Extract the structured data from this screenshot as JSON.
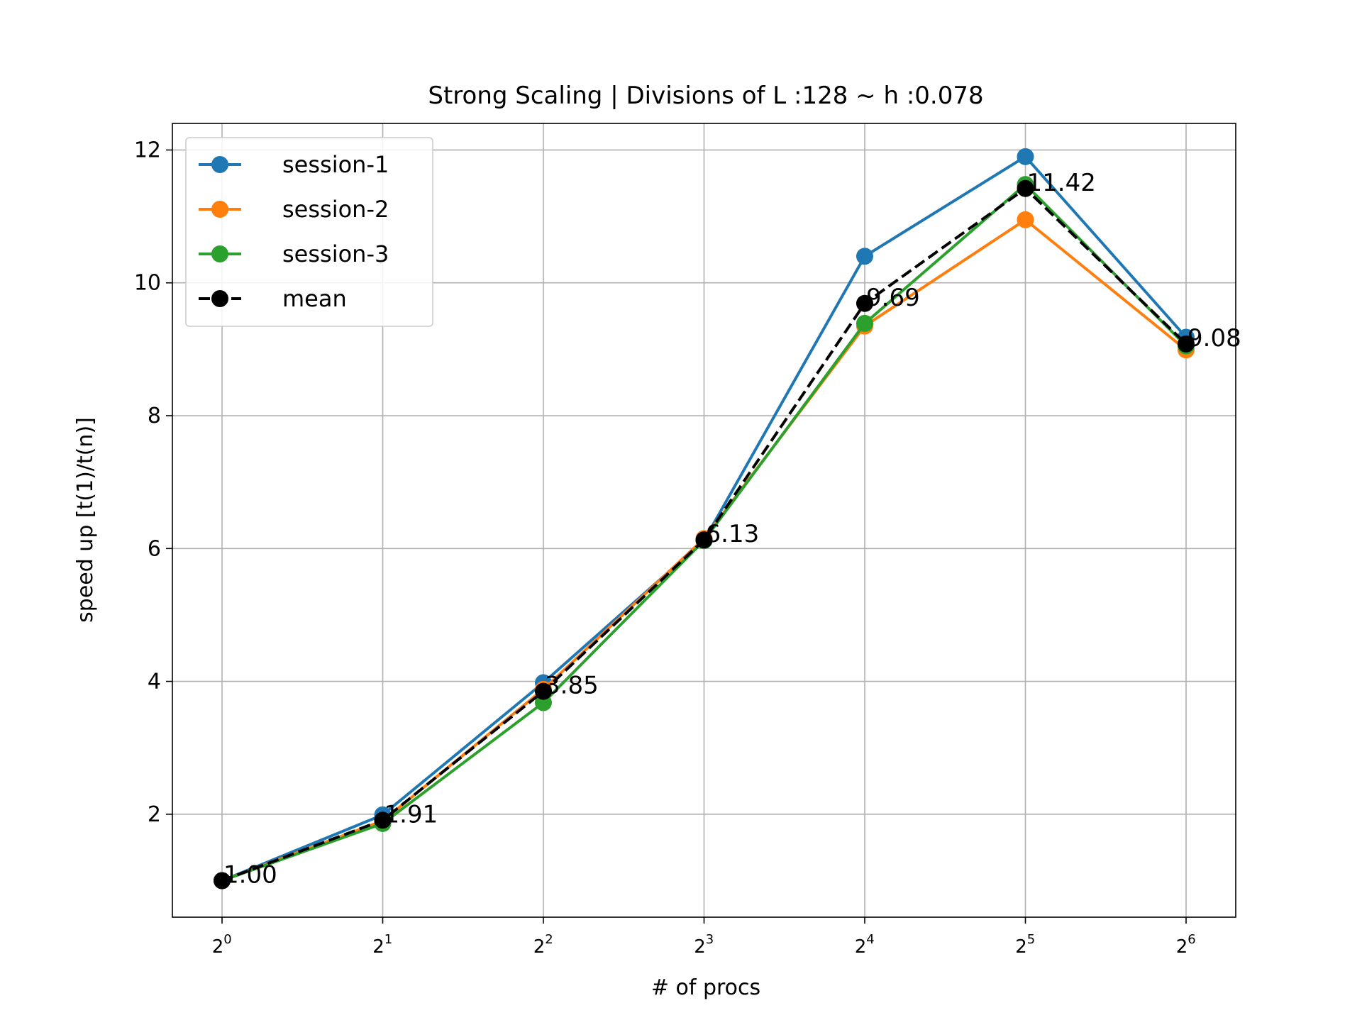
{
  "chart_data": {
    "type": "line",
    "title": "Strong Scaling | Divisions of L :128 ~ h :0.078",
    "xlabel": "# of procs",
    "ylabel": "speed up [t(1)/t(n)]",
    "x_scale": "log2",
    "x": [
      1,
      2,
      4,
      8,
      16,
      32,
      64
    ],
    "x_tick_labels": [
      {
        "base": "2",
        "exp": "0"
      },
      {
        "base": "2",
        "exp": "1"
      },
      {
        "base": "2",
        "exp": "2"
      },
      {
        "base": "2",
        "exp": "3"
      },
      {
        "base": "2",
        "exp": "4"
      },
      {
        "base": "2",
        "exp": "5"
      },
      {
        "base": "2",
        "exp": "6"
      }
    ],
    "y_ticks": [
      "2",
      "4",
      "6",
      "8",
      "10",
      "12"
    ],
    "ylim": [
      0.45,
      12.4
    ],
    "grid": true,
    "legend_position": "top-left",
    "series": [
      {
        "name": "session-1",
        "color": "#1f77b4",
        "style": "solid",
        "values": [
          1.0,
          1.99,
          3.98,
          6.12,
          10.4,
          11.9,
          9.18
        ]
      },
      {
        "name": "session-2",
        "color": "#ff7f0e",
        "style": "solid",
        "values": [
          1.0,
          1.9,
          3.88,
          6.15,
          9.35,
          10.95,
          8.99
        ]
      },
      {
        "name": "session-3",
        "color": "#2ca02c",
        "style": "solid",
        "values": [
          1.0,
          1.86,
          3.68,
          6.12,
          9.39,
          11.48,
          9.05
        ]
      },
      {
        "name": "mean",
        "color": "#000000",
        "style": "dashed",
        "values": [
          1.0,
          1.91,
          3.85,
          6.13,
          9.69,
          11.42,
          9.08
        ]
      }
    ],
    "annotations": [
      "1.00",
      "1.91",
      "3.85",
      "6.13",
      "9.69",
      "11.42",
      "9.08"
    ]
  }
}
